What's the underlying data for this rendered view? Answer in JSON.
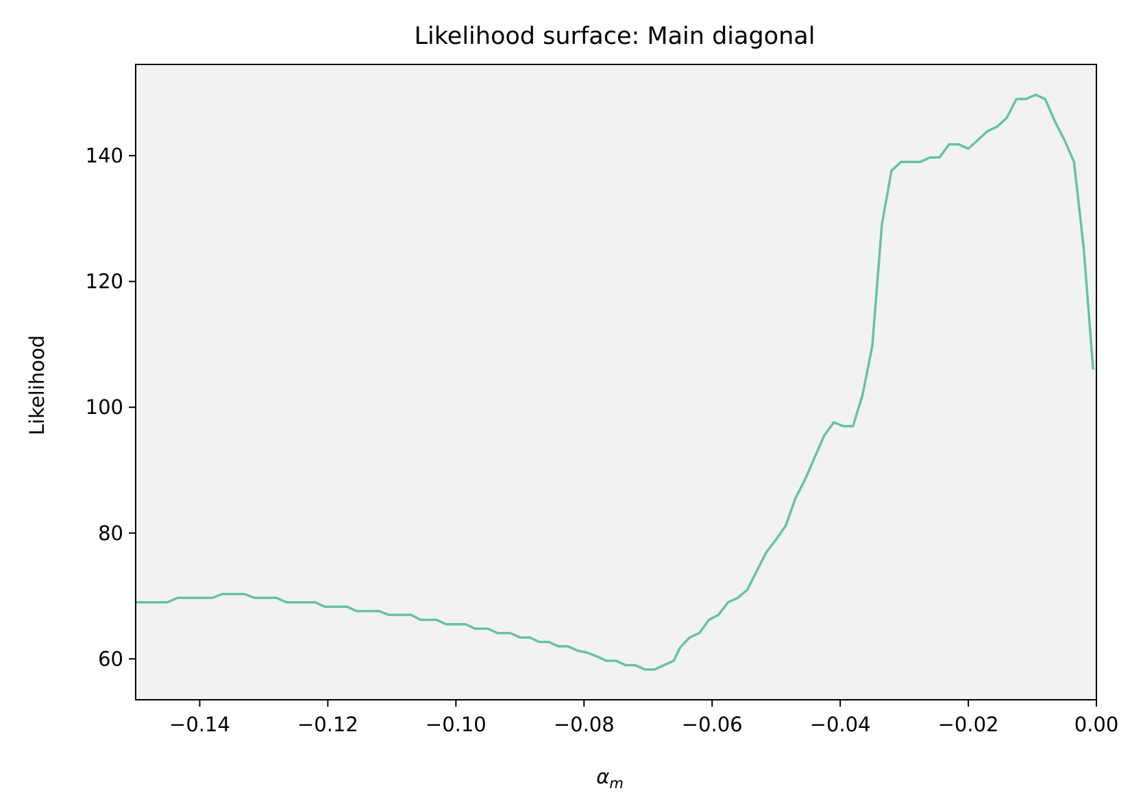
{
  "chart_data": {
    "type": "line",
    "title": "Likelihood surface: Main diagonal",
    "xlabel": "α",
    "xlabel_subscript": "m",
    "ylabel": "Likelihood",
    "xlim": [
      -0.15,
      0.0
    ],
    "ylim": [
      53.5,
      154.5
    ],
    "xticks": [
      -0.14,
      -0.12,
      -0.1,
      -0.08,
      -0.06,
      -0.04,
      -0.02,
      0.0
    ],
    "xtick_labels": [
      "−0.14",
      "−0.12",
      "−0.10",
      "−0.08",
      "−0.06",
      "−0.04",
      "−0.02",
      "0.00"
    ],
    "yticks": [
      60,
      80,
      100,
      120,
      140
    ],
    "ytick_labels": [
      "60",
      "80",
      "100",
      "120",
      "140"
    ],
    "grid": false,
    "background": "#f2f2f2",
    "line_color": "#66c2a5",
    "series": [
      {
        "x": [
          -0.15,
          -0.145,
          -0.1435,
          -0.138,
          -0.1365,
          -0.133,
          -0.1315,
          -0.128,
          -0.1265,
          -0.122,
          -0.1205,
          -0.117,
          -0.1155,
          -0.112,
          -0.1105,
          -0.107,
          -0.1055,
          -0.103,
          -0.1015,
          -0.0985,
          -0.097,
          -0.095,
          -0.0935,
          -0.0915,
          -0.09,
          -0.0885,
          -0.087,
          -0.0855,
          -0.084,
          -0.0825,
          -0.081,
          -0.0795,
          -0.078,
          -0.0765,
          -0.075,
          -0.0735,
          -0.072,
          -0.0705,
          -0.069,
          -0.0675,
          -0.066,
          -0.065,
          -0.0635,
          -0.062,
          -0.0605,
          -0.059,
          -0.0575,
          -0.056,
          -0.0545,
          -0.053,
          -0.0515,
          -0.05,
          -0.0485,
          -0.047,
          -0.0455,
          -0.044,
          -0.0425,
          -0.041,
          -0.0395,
          -0.038,
          -0.0365,
          -0.035,
          -0.0335,
          -0.032,
          -0.0305,
          -0.029,
          -0.0275,
          -0.026,
          -0.0245,
          -0.023,
          -0.0215,
          -0.02,
          -0.0185,
          -0.017,
          -0.0155,
          -0.014,
          -0.0125,
          -0.011,
          -0.0095,
          -0.008,
          -0.0065,
          -0.005,
          -0.0035,
          -0.002,
          -0.0005
        ],
        "y": [
          69.0,
          69.0,
          69.7,
          69.7,
          70.3,
          70.3,
          69.7,
          69.7,
          69.0,
          69.0,
          68.3,
          68.3,
          67.6,
          67.6,
          67.0,
          67.0,
          66.2,
          66.2,
          65.5,
          65.5,
          64.8,
          64.8,
          64.1,
          64.1,
          63.4,
          63.4,
          62.7,
          62.7,
          62.0,
          62.0,
          61.3,
          61.0,
          60.4,
          59.7,
          59.7,
          59.0,
          59.0,
          58.3,
          58.3,
          59.0,
          59.7,
          61.8,
          63.4,
          64.1,
          66.2,
          67.0,
          69.0,
          69.7,
          71.0,
          74.0,
          77.0,
          79.0,
          81.2,
          85.5,
          88.5,
          92.0,
          95.5,
          97.6,
          97.0,
          97.0,
          102.0,
          109.7,
          129.0,
          137.6,
          139.0,
          139.0,
          139.0,
          139.7,
          139.7,
          141.8,
          141.8,
          141.1,
          142.5,
          143.9,
          144.6,
          146.0,
          149.0,
          149.0,
          149.7,
          149.0,
          145.5,
          142.5,
          139.0,
          125.5,
          106.0
        ]
      }
    ]
  }
}
